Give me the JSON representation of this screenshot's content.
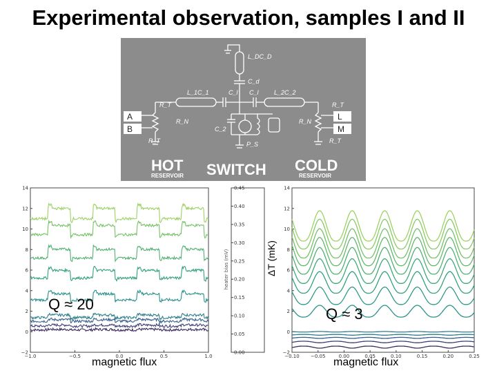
{
  "title": "Experimental observation, samples I and II",
  "circuit": {
    "labels": {
      "hot": "HOT",
      "hot_sub": "RESERVOIR",
      "switch": "SWITCH",
      "cold": "COLD",
      "cold_sub": "RESERVOIR",
      "A": "A",
      "B": "B",
      "L": "L",
      "M": "M",
      "LDCD": "L_DC_D",
      "Cd": "C_d",
      "L1C1": "L_1C_1",
      "L2C2": "L_2C_2",
      "C1a": "C_l",
      "C1b": "C_l",
      "RT1": "R_T",
      "RN1": "R_N",
      "RT2": "R_T",
      "RN2": "R_N",
      "RT3": "R_T",
      "RT4": "R_T",
      "C2": "C_2",
      "PS": "P_S"
    }
  },
  "left_plot": {
    "q_label": "Q ≈ 20",
    "xlabel": "magnetic flux"
  },
  "middle_axis": {
    "ylabel": "heater bias (mV)"
  },
  "right_plot": {
    "q_label": "Q ≈ 3",
    "xlabel": "magnetic flux",
    "ylabel": "ΔT (mK)"
  },
  "chart_data": [
    {
      "type": "line",
      "title": "",
      "xlabel": "magnetic flux",
      "ylabel": "",
      "xlim": [
        -1.0,
        1.0
      ],
      "ylim": [
        -2,
        14
      ],
      "x_ticks": [
        "−1.0",
        "−0.5",
        "0.0",
        "0.5",
        "1.0"
      ],
      "y_ticks": [
        "−2",
        "0",
        "2",
        "4",
        "6",
        "8",
        "10",
        "12",
        "14"
      ],
      "annotation": "Q ≈ 20",
      "series": [
        {
          "offset": 0.2,
          "amplitude": 0.05,
          "color": "#3b2a5e"
        },
        {
          "offset": 0.6,
          "amplitude": 0.1,
          "color": "#3d3f7a"
        },
        {
          "offset": 1.1,
          "amplitude": 0.15,
          "color": "#35608a"
        },
        {
          "offset": 1.5,
          "amplitude": 0.25,
          "color": "#2e7c8c"
        },
        {
          "offset": 3.4,
          "amplitude": 0.6,
          "color": "#29918a"
        },
        {
          "offset": 5.6,
          "amplitude": 0.75,
          "color": "#31a07e"
        },
        {
          "offset": 7.6,
          "amplitude": 0.85,
          "color": "#4fb072"
        },
        {
          "offset": 9.9,
          "amplitude": 0.9,
          "color": "#75c166"
        },
        {
          "offset": 11.5,
          "amplitude": 1.0,
          "color": "#9cd263"
        }
      ]
    },
    {
      "type": "heatmap",
      "title": "",
      "ylabel": "heater bias (mV)",
      "ylim": [
        0.0,
        0.45
      ],
      "y_ticks": [
        "0.00",
        "0.05",
        "0.10",
        "0.15",
        "0.20",
        "0.25",
        "0.30",
        "0.35",
        "0.40",
        "0.45"
      ]
    },
    {
      "type": "line",
      "title": "",
      "xlabel": "magnetic flux",
      "ylabel": "ΔT (mK)",
      "xlim": [
        -0.1,
        0.25
      ],
      "ylim": [
        -2,
        14
      ],
      "x_ticks": [
        "−0.10",
        "−0.05",
        "0.00",
        "0.05",
        "0.10",
        "0.15",
        "0.20",
        "0.25"
      ],
      "y_ticks": [
        "−2",
        "0",
        "2",
        "4",
        "6",
        "8",
        "10",
        "12",
        "14"
      ],
      "annotation": "Q ≈ 3",
      "series": [
        {
          "offset": -1.5,
          "amplitude": -0.4,
          "color": "#3b2a5e"
        },
        {
          "offset": -1.0,
          "amplitude": -0.3,
          "color": "#3d3f7a"
        },
        {
          "offset": -0.6,
          "amplitude": -0.2,
          "color": "#35608a"
        },
        {
          "offset": -0.3,
          "amplitude": -0.15,
          "color": "#2e7c8c"
        },
        {
          "offset": 0.0,
          "amplitude": 0.1,
          "color": "#2e7c8c"
        },
        {
          "offset": 2.0,
          "amplitude": 2.3,
          "color": "#29918a"
        },
        {
          "offset": 3.5,
          "amplitude": 3.4,
          "color": "#2e9a86"
        },
        {
          "offset": 4.8,
          "amplitude": 4.2,
          "color": "#31a07e"
        },
        {
          "offset": 5.9,
          "amplitude": 4.8,
          "color": "#40a878"
        },
        {
          "offset": 6.9,
          "amplitude": 5.2,
          "color": "#4fb072"
        },
        {
          "offset": 7.8,
          "amplitude": 5.5,
          "color": "#62b86c"
        },
        {
          "offset": 8.6,
          "amplitude": 5.7,
          "color": "#75c166"
        },
        {
          "offset": 9.5,
          "amplitude": 5.8,
          "color": "#88ca64"
        },
        {
          "offset": 10.3,
          "amplitude": 5.9,
          "color": "#9cd263"
        }
      ]
    }
  ]
}
